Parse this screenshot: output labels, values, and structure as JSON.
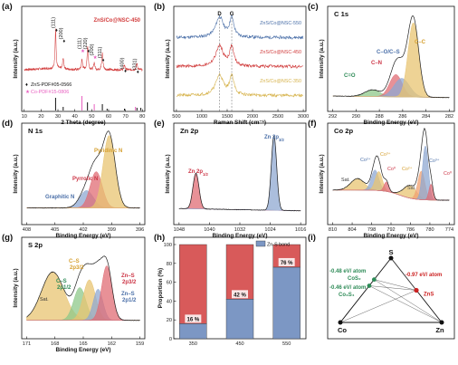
{
  "chart_data": [
    {
      "id": "a",
      "type": "line",
      "panel_label": "(a)",
      "xlabel": "2 Theta (degree)",
      "ylabel": "Intensity (a.u.)",
      "xlim": [
        10,
        80
      ],
      "x_ticks": [
        "10",
        "20",
        "30",
        "40",
        "50",
        "60",
        "70",
        "80"
      ],
      "title_in_plot": "ZnS/Co@NSC-450",
      "legend": [
        {
          "name": "ZnS-PDF#05-0566",
          "marker": "diamond",
          "color": "#111111"
        },
        {
          "name": "Co-PDF#15-0806",
          "marker": "star",
          "color": "#e85fc0"
        }
      ],
      "peak_labels": [
        {
          "text": "(111)",
          "x": 28.6,
          "color": "#222"
        },
        {
          "text": "(200)",
          "x": 33.1,
          "color": "#222"
        },
        {
          "text": "(111)",
          "x": 44.2,
          "color": "#e85fc0"
        },
        {
          "text": "(220)",
          "x": 47.6,
          "color": "#222"
        },
        {
          "text": "(200)",
          "x": 51.5,
          "color": "#e85fc0"
        },
        {
          "text": "(311)",
          "x": 56.3,
          "color": "#222"
        },
        {
          "text": "(400)",
          "x": 69.4,
          "color": "#222"
        },
        {
          "text": "(331)",
          "x": 76.8,
          "color": "#222"
        }
      ],
      "reference_zns": [
        28.6,
        33.1,
        47.5,
        56.3,
        59.1,
        69.4,
        76.8,
        79.1
      ],
      "reference_co": [
        44.2,
        51.5,
        75.9
      ]
    },
    {
      "id": "b",
      "type": "line",
      "panel_label": "(b)",
      "xlabel": "Raman Shift (cm⁻¹)",
      "ylabel": "Intensity (a.u.)",
      "xlim": [
        500,
        3000
      ],
      "x_ticks": [
        "500",
        "1000",
        "1500",
        "2000",
        "2500",
        "3000"
      ],
      "bands": [
        {
          "name": "D",
          "x": 1350
        },
        {
          "name": "G",
          "x": 1590
        }
      ],
      "series": [
        {
          "name": "ZnS/Co@NSC-550",
          "color": "#4a6fa8"
        },
        {
          "name": "ZnS/Co@NSC-450",
          "color": "#d03a3a"
        },
        {
          "name": "ZnS/Co@NSC-350",
          "color": "#d6b24a"
        }
      ]
    },
    {
      "id": "c",
      "type": "line",
      "panel_label": "(c)",
      "title": "C 1s",
      "xlabel": "Binding Energy (eV)",
      "ylabel": "Intensity (a.u.)",
      "xlim": [
        293,
        281
      ],
      "x_ticks": [
        "292",
        "290",
        "288",
        "286",
        "284",
        "282"
      ],
      "components": [
        {
          "name": "C–C",
          "center": 284.7,
          "color": "#e8c472"
        },
        {
          "name": "C–O/C–S",
          "center": 285.9,
          "color": "#8fa8d2"
        },
        {
          "name": "C–N",
          "center": 286.5,
          "color": "#e06c74"
        },
        {
          "name": "C=O",
          "center": 288.9,
          "color": "#8ec88a"
        }
      ]
    },
    {
      "id": "d",
      "type": "line",
      "panel_label": "(d)",
      "title": "N 1s",
      "xlabel": "Binding Energy (eV)",
      "ylabel": "Intensity (a.u.)",
      "xlim": [
        409,
        395
      ],
      "x_ticks": [
        "408",
        "405",
        "402",
        "399",
        "396"
      ],
      "components": [
        {
          "name": "Pyridinic N",
          "center": 398.8,
          "color": "#e8c472"
        },
        {
          "name": "Pyrrolic N",
          "center": 400.4,
          "color": "#e06c74"
        },
        {
          "name": "Graphitic N",
          "center": 401.6,
          "color": "#8fa8d2"
        }
      ]
    },
    {
      "id": "e",
      "type": "line",
      "panel_label": "(e)",
      "title": "Zn 2p",
      "xlabel": "Binding Energy (eV)",
      "ylabel": "Intensity (a.u.)",
      "xlim": [
        1050,
        1014
      ],
      "x_ticks": [
        "1048",
        "1040",
        "1032",
        "1024",
        "1016"
      ],
      "components": [
        {
          "name": "Zn 2p",
          "sub": "1/2",
          "center": 1045.0,
          "color": "#e06c74"
        },
        {
          "name": "Zn 2p",
          "sub": "3/2",
          "center": 1021.9,
          "color": "#8fa8d2"
        }
      ]
    },
    {
      "id": "f",
      "type": "line",
      "panel_label": "(f)",
      "title": "Co 2p",
      "xlabel": "Binding Energy (eV)",
      "ylabel": "Intensity (a.u.)",
      "xlim": [
        812,
        772
      ],
      "x_ticks": [
        "810",
        "804",
        "798",
        "792",
        "786",
        "780",
        "774"
      ],
      "labels": [
        "Sat.",
        "Co²⁺",
        "Co³⁺",
        "Co⁰",
        "Co²⁺",
        "Sat.",
        "Co³⁺",
        "Co⁰"
      ]
    },
    {
      "id": "g",
      "type": "line",
      "panel_label": "(g)",
      "title": "S 2p",
      "xlabel": "Binding Energy (eV)",
      "ylabel": "Intensity (a.u.)",
      "xlim": [
        171,
        158
      ],
      "x_ticks": [
        "171",
        "168",
        "165",
        "162",
        "159"
      ],
      "components": [
        {
          "name": "Sat.",
          "center": 168.0,
          "color": "#e8c472"
        },
        {
          "name": "C–S",
          "sub": "2p1/2",
          "center": 164.9,
          "color": "#8ec88a"
        },
        {
          "name": "C–S",
          "sub": "2p3/2",
          "center": 163.8,
          "color": "#e8c472"
        },
        {
          "name": "Zn–S",
          "sub": "2p3/2",
          "center": 161.8,
          "color": "#e06c74"
        },
        {
          "name": "Zn–S",
          "sub": "2p1/2",
          "center": 162.8,
          "color": "#8fa8d2"
        }
      ]
    },
    {
      "id": "h",
      "type": "bar",
      "panel_label": "(h)",
      "xlabel": "Temperature (°C)",
      "ylabel": "Proportion (%)",
      "categories": [
        "350",
        "450",
        "550"
      ],
      "ylim": [
        0,
        100
      ],
      "y_ticks": [
        "0",
        "20",
        "40",
        "60",
        "80",
        "100"
      ],
      "legend": "Zn-S bond",
      "series": [
        {
          "name": "Zn-S bond",
          "values": [
            16,
            42,
            76
          ],
          "labels": [
            "16 %",
            "42 %",
            "76 %"
          ],
          "color": "#7c97c4"
        },
        {
          "values": [
            84,
            58,
            24
          ],
          "color": "#d85a5a"
        }
      ]
    },
    {
      "id": "i",
      "type": "diagram",
      "panel_label": "(i)",
      "vertices": [
        "S",
        "Co",
        "Zn"
      ],
      "points": [
        {
          "name": "CoS₂",
          "energy": "-0.48 eV/ atom",
          "color": "#2e8b57"
        },
        {
          "name": "Co₃S₄",
          "energy": "-0.46 eV/ atom",
          "color": "#2e8b57"
        },
        {
          "name": "ZnS",
          "energy": "-0.97 eV/ atom",
          "color": "#cc2222"
        }
      ]
    }
  ]
}
